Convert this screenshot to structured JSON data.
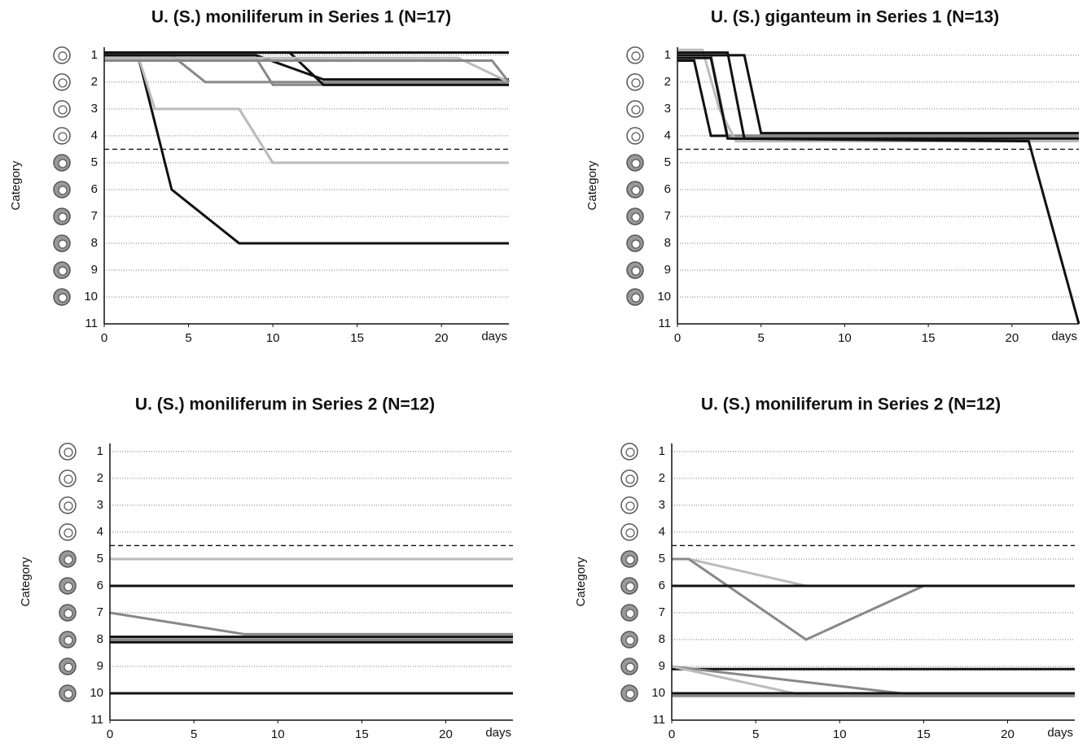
{
  "chart_data": [
    {
      "type": "line",
      "title": "U. (S.) moniliferum in Series 1 (N=17)",
      "xlabel": "days",
      "ylabel": "Category",
      "xlim": [
        0,
        24
      ],
      "xticks": [
        0,
        5,
        10,
        15,
        20
      ],
      "ylim": [
        11,
        0.7
      ],
      "yticks": [
        1,
        2,
        3,
        4,
        5,
        6,
        7,
        8,
        9,
        10,
        11
      ],
      "grid": true,
      "reference_line": 4.5,
      "series": [
        {
          "color": "#111111",
          "x": [
            0,
            2,
            4,
            8,
            24
          ],
          "values": [
            1,
            1,
            6,
            8,
            8
          ]
        },
        {
          "color": "#bbbbbb",
          "x": [
            0,
            2,
            3,
            8,
            10,
            24
          ],
          "values": [
            1,
            1,
            3,
            3,
            5,
            5
          ]
        },
        {
          "color": "#888888",
          "x": [
            0,
            4,
            6,
            9,
            24
          ],
          "values": [
            1,
            1,
            2,
            2,
            2
          ]
        },
        {
          "color": "#888888",
          "x": [
            0,
            9,
            10,
            24
          ],
          "values": [
            1.1,
            1.1,
            2.1,
            2.1
          ]
        },
        {
          "color": "#111111",
          "x": [
            0,
            9,
            13,
            24
          ],
          "values": [
            1,
            1,
            1.9,
            1.9
          ]
        },
        {
          "color": "#111111",
          "x": [
            0,
            11,
            13,
            24
          ],
          "values": [
            0.9,
            0.9,
            2.1,
            2.1
          ]
        },
        {
          "color": "#bbbbbb",
          "x": [
            0,
            21,
            24
          ],
          "values": [
            1.1,
            1.1,
            2
          ]
        },
        {
          "color": "#888888",
          "x": [
            0,
            23,
            24
          ],
          "values": [
            1.2,
            1.2,
            2
          ]
        },
        {
          "color": "#111111",
          "x": [
            0,
            24
          ],
          "values": [
            0.9,
            0.9
          ]
        }
      ]
    },
    {
      "type": "line",
      "title": "U. (S.) giganteum in Series 1 (N=13)",
      "xlabel": "days",
      "ylabel": "Category",
      "xlim": [
        0,
        24
      ],
      "xticks": [
        0,
        5,
        10,
        15,
        20
      ],
      "ylim": [
        11,
        0.7
      ],
      "yticks": [
        1,
        2,
        3,
        4,
        5,
        6,
        7,
        8,
        9,
        10,
        11
      ],
      "grid": true,
      "reference_line": 4.5,
      "series": [
        {
          "color": "#111111",
          "x": [
            0,
            1,
            2,
            24
          ],
          "values": [
            1.2,
            1.2,
            4,
            4
          ]
        },
        {
          "color": "#888888",
          "x": [
            0,
            2,
            3,
            24
          ],
          "values": [
            1,
            1,
            4,
            4
          ]
        },
        {
          "color": "#bbbbbb",
          "x": [
            0,
            1.5,
            2.5,
            3.5,
            24
          ],
          "values": [
            0.8,
            0.8,
            3,
            4.2,
            4.2
          ]
        },
        {
          "color": "#111111",
          "x": [
            0,
            3,
            4,
            24
          ],
          "values": [
            0.9,
            0.9,
            4.1,
            4.1
          ]
        },
        {
          "color": "#111111",
          "x": [
            0,
            4,
            5,
            24
          ],
          "values": [
            1,
            1,
            3.9,
            3.9
          ]
        },
        {
          "color": "#111111",
          "x": [
            0,
            2,
            3,
            21,
            24
          ],
          "values": [
            1.1,
            1.1,
            4.1,
            4.2,
            11
          ]
        }
      ]
    },
    {
      "type": "line",
      "title": "U. (S.) moniliferum in Series 2 (N=12)",
      "xlabel": "days",
      "ylabel": "Category",
      "xlim": [
        0,
        24
      ],
      "xticks": [
        0,
        5,
        10,
        15,
        20
      ],
      "ylim": [
        11,
        0.7
      ],
      "yticks": [
        1,
        2,
        3,
        4,
        5,
        6,
        7,
        8,
        9,
        10,
        11
      ],
      "grid": true,
      "reference_line": 4.5,
      "series": [
        {
          "color": "#bbbbbb",
          "x": [
            0,
            24
          ],
          "values": [
            5,
            5
          ]
        },
        {
          "color": "#111111",
          "x": [
            0,
            24
          ],
          "values": [
            6,
            6
          ]
        },
        {
          "color": "#888888",
          "x": [
            0,
            8,
            24
          ],
          "values": [
            7,
            7.8,
            7.8
          ]
        },
        {
          "color": "#111111",
          "x": [
            0,
            24
          ],
          "values": [
            7.9,
            7.9
          ]
        },
        {
          "color": "#888888",
          "x": [
            0,
            24
          ],
          "values": [
            8,
            8
          ]
        },
        {
          "color": "#111111",
          "x": [
            0,
            24
          ],
          "values": [
            8.1,
            8.1
          ]
        },
        {
          "color": "#111111",
          "x": [
            0,
            24
          ],
          "values": [
            10,
            10
          ]
        }
      ]
    },
    {
      "type": "line",
      "title": "U. (S.) moniliferum in Series 2 (N=12)",
      "xlabel": "days",
      "ylabel": "Category",
      "xlim": [
        0,
        24
      ],
      "xticks": [
        0,
        5,
        10,
        15,
        20
      ],
      "ylim": [
        11,
        0.7
      ],
      "yticks": [
        1,
        2,
        3,
        4,
        5,
        6,
        7,
        8,
        9,
        10,
        11
      ],
      "grid": true,
      "reference_line": 4.5,
      "series": [
        {
          "color": "#bbbbbb",
          "x": [
            0,
            1,
            8,
            24
          ],
          "values": [
            5,
            5,
            6,
            6
          ]
        },
        {
          "color": "#888888",
          "x": [
            0,
            1,
            8,
            15,
            24
          ],
          "values": [
            5,
            5,
            8,
            6,
            6
          ]
        },
        {
          "color": "#111111",
          "x": [
            0,
            24
          ],
          "values": [
            6,
            6
          ]
        },
        {
          "color": "#111111",
          "x": [
            0,
            24
          ],
          "values": [
            9.1,
            9.1
          ]
        },
        {
          "color": "#888888",
          "x": [
            0,
            15,
            24
          ],
          "values": [
            9,
            10.1,
            10.1
          ]
        },
        {
          "color": "#bbbbbb",
          "x": [
            0,
            8,
            24
          ],
          "values": [
            9,
            10.1,
            10.1
          ]
        },
        {
          "color": "#111111",
          "x": [
            0,
            24
          ],
          "values": [
            10,
            10
          ]
        },
        {
          "color": "#888888",
          "x": [
            0,
            24
          ],
          "values": [
            10.1,
            10.1
          ]
        }
      ]
    }
  ]
}
